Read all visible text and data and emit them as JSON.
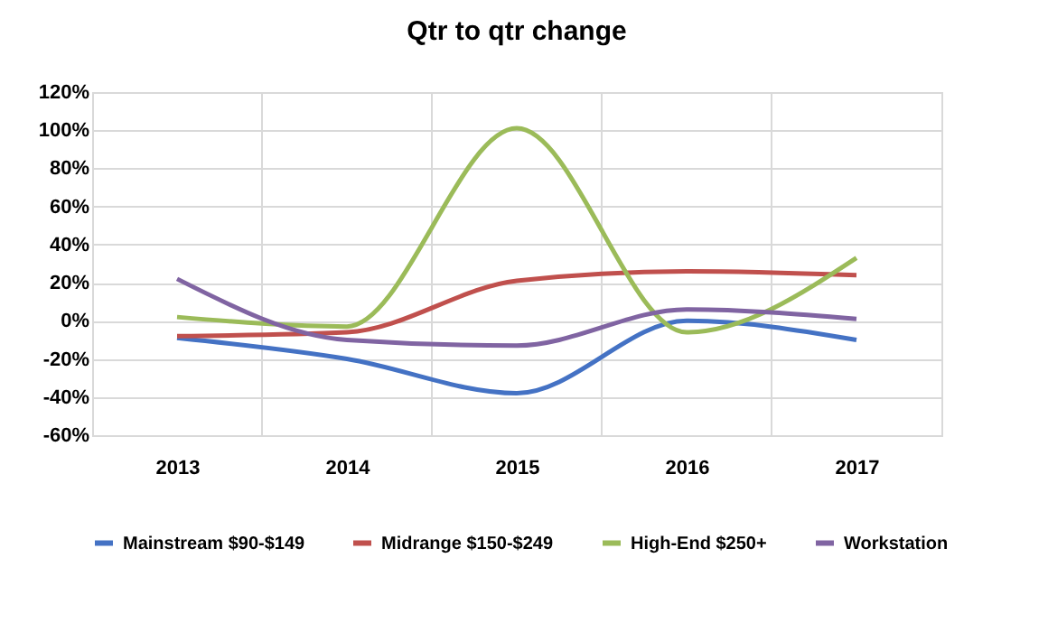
{
  "chart_data": {
    "type": "line",
    "title": "Qtr to qtr change",
    "categories": [
      "2013",
      "2014",
      "2015",
      "2016",
      "2017"
    ],
    "series": [
      {
        "name": "Mainstream $90-$149",
        "color": "#4472c4",
        "values": [
          -9,
          -20,
          -38,
          0,
          -10
        ]
      },
      {
        "name": "Midrange $150-$249",
        "color": "#c0504d",
        "values": [
          -8,
          -6,
          21,
          26,
          24
        ]
      },
      {
        "name": "High-End $250+",
        "color": "#9bbb59",
        "values": [
          2,
          -3,
          101,
          -6,
          33
        ]
      },
      {
        "name": "Workstation",
        "color": "#8064a2",
        "values": [
          22,
          -10,
          -13,
          6,
          1
        ]
      }
    ],
    "ylim": [
      -60,
      120
    ],
    "yticks": [
      {
        "value": -60,
        "label": "-60%"
      },
      {
        "value": -40,
        "label": "-40%"
      },
      {
        "value": -20,
        "label": "-20%"
      },
      {
        "value": 0,
        "label": "0%"
      },
      {
        "value": 20,
        "label": "20%"
      },
      {
        "value": 40,
        "label": "40%"
      },
      {
        "value": 60,
        "label": "60%"
      },
      {
        "value": 80,
        "label": "80%"
      },
      {
        "value": 100,
        "label": "100%"
      },
      {
        "value": 120,
        "label": "120%"
      }
    ],
    "grid": true,
    "legend": "bottom",
    "marker": "none",
    "line_style": "solid"
  }
}
